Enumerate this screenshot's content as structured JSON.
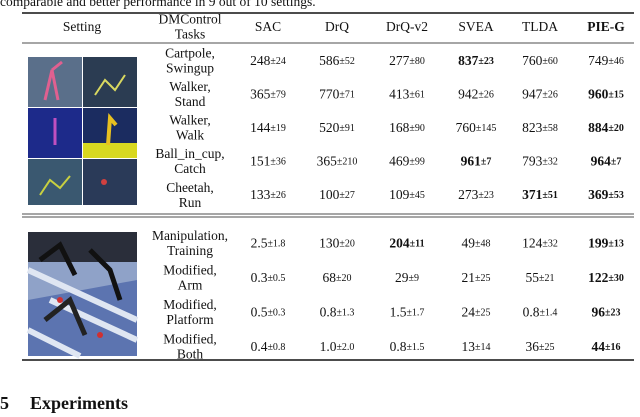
{
  "intro": "comparable and better performance in 9 out of 10 settings.",
  "table": {
    "header": [
      [
        "Setting"
      ],
      [
        "DMControl",
        "Tasks"
      ],
      [
        "SAC"
      ],
      [
        "DrQ"
      ],
      [
        "DrQ-v2"
      ],
      [
        "SVEA"
      ],
      [
        "TLDA"
      ],
      [
        "PIE-G"
      ]
    ],
    "header_bold": [
      false,
      false,
      false,
      false,
      false,
      false,
      false,
      true
    ],
    "groups": [
      {
        "rows": [
          {
            "task": [
              "Cartpole,",
              "Swingup"
            ],
            "cells": [
              {
                "mean": "248",
                "std": "±24"
              },
              {
                "mean": "586",
                "std": "±52"
              },
              {
                "mean": "277",
                "std": "±80"
              },
              {
                "mean": "837",
                "std": "±23",
                "bold": true
              },
              {
                "mean": "760",
                "std": "±60"
              },
              {
                "mean": "749",
                "std": "±46"
              }
            ]
          },
          {
            "task": [
              "Walker,",
              "Stand"
            ],
            "cells": [
              {
                "mean": "365",
                "std": "±79"
              },
              {
                "mean": "770",
                "std": "±71"
              },
              {
                "mean": "413",
                "std": "±61"
              },
              {
                "mean": "942",
                "std": "±26"
              },
              {
                "mean": "947",
                "std": "±26"
              },
              {
                "mean": "960",
                "std": "±15",
                "bold": true
              }
            ]
          },
          {
            "task": [
              "Walker,",
              "Walk"
            ],
            "cells": [
              {
                "mean": "144",
                "std": "±19"
              },
              {
                "mean": "520",
                "std": "±91"
              },
              {
                "mean": "168",
                "std": "±90"
              },
              {
                "mean": "760",
                "std": "±145"
              },
              {
                "mean": "823",
                "std": "±58"
              },
              {
                "mean": "884",
                "std": "±20",
                "bold": true
              }
            ]
          },
          {
            "task": [
              "Ball_in_cup,",
              "Catch"
            ],
            "cells": [
              {
                "mean": "151",
                "std": "±36"
              },
              {
                "mean": "365",
                "std": "±210"
              },
              {
                "mean": "469",
                "std": "±99"
              },
              {
                "mean": "961",
                "std": "±7",
                "bold": true
              },
              {
                "mean": "793",
                "std": "±32"
              },
              {
                "mean": "964",
                "std": "±7",
                "bold": true
              }
            ]
          },
          {
            "task": [
              "Cheetah,",
              "Run"
            ],
            "cells": [
              {
                "mean": "133",
                "std": "±26"
              },
              {
                "mean": "100",
                "std": "±27"
              },
              {
                "mean": "109",
                "std": "±45"
              },
              {
                "mean": "273",
                "std": "±23"
              },
              {
                "mean": "371",
                "std": "±51",
                "bold": true
              },
              {
                "mean": "369",
                "std": "±53",
                "bold": true
              }
            ]
          }
        ]
      },
      {
        "rows": [
          {
            "task": [
              "Manipulation,",
              "Training"
            ],
            "cells": [
              {
                "mean": "2.5",
                "std": "±1.8"
              },
              {
                "mean": "130",
                "std": "±20"
              },
              {
                "mean": "204",
                "std": "±11",
                "bold": true
              },
              {
                "mean": "49",
                "std": "±48"
              },
              {
                "mean": "124",
                "std": "±32"
              },
              {
                "mean": "199",
                "std": "±13",
                "bold": true
              }
            ]
          },
          {
            "task": [
              "Modified,",
              "Arm"
            ],
            "cells": [
              {
                "mean": "0.3",
                "std": "±0.5"
              },
              {
                "mean": "68",
                "std": "±20"
              },
              {
                "mean": "29",
                "std": "±9"
              },
              {
                "mean": "21",
                "std": "±25"
              },
              {
                "mean": "55",
                "std": "±21"
              },
              {
                "mean": "122",
                "std": "±30",
                "bold": true
              }
            ]
          },
          {
            "task": [
              "Modified,",
              "Platform"
            ],
            "cells": [
              {
                "mean": "0.5",
                "std": "±0.3"
              },
              {
                "mean": "0.8",
                "std": "±1.3"
              },
              {
                "mean": "1.5",
                "std": "±1.7"
              },
              {
                "mean": "24",
                "std": "±25"
              },
              {
                "mean": "0.8",
                "std": "±1.4"
              },
              {
                "mean": "96",
                "std": "±23",
                "bold": true
              }
            ]
          },
          {
            "task": [
              "Modified,",
              "Both"
            ],
            "cells": [
              {
                "mean": "0.4",
                "std": "±0.8"
              },
              {
                "mean": "1.0",
                "std": "±2.0"
              },
              {
                "mean": "0.8",
                "std": "±1.5"
              },
              {
                "mean": "13",
                "std": "±14"
              },
              {
                "mean": "36",
                "std": "±25"
              },
              {
                "mean": "44",
                "std": "±16",
                "bold": true
              }
            ]
          }
        ]
      }
    ]
  },
  "section": {
    "number": "5",
    "title": "Experiments"
  }
}
